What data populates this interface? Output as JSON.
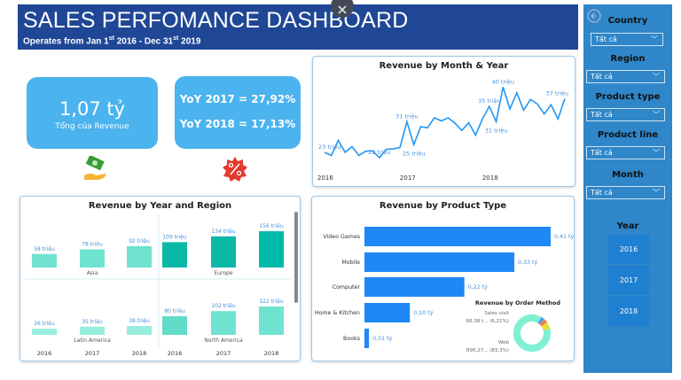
{
  "header": {
    "title": "SALES PERFOMANCE DASHBOARD",
    "subtitle_pre": "Operates from Jan 1",
    "sup1": "st",
    "subtitle_mid": " 2016 - Dec 31",
    "sup2": "st",
    "subtitle_post": " 2019",
    "close_icon": "close-icon"
  },
  "kpi": {
    "total_value": "1,07 tỷ",
    "total_label": "Tổng của Revenue",
    "yoy_2017": "YoY 2017 = 27,92%",
    "yoy_2018": "YoY 2018 = 17,13%",
    "icons": [
      "money-hand-icon",
      "percent-badge-icon"
    ]
  },
  "colors": {
    "header": "#1f4796",
    "kpi": "#4bb3ee",
    "sidebar": "#2f86c8",
    "line": "#2196f3",
    "bar": "#1e88f5"
  },
  "chart_data": [
    {
      "type": "line",
      "title": "Revenue by Month & Year",
      "x_tick_labels": [
        "2016",
        "2017",
        "2018"
      ],
      "values": [
        23,
        22.2,
        26.1,
        23,
        24.5,
        22.2,
        23.3,
        23.4,
        21.6,
        23.8,
        23.9,
        24.3,
        31,
        25,
        29.7,
        29.4,
        32,
        31.2,
        32,
        30.6,
        28.7,
        30.7,
        27.5,
        31.7,
        35,
        31,
        40,
        34.3,
        38.5,
        34,
        36.8,
        35.6,
        33,
        35.4,
        31.7,
        37
      ],
      "data_labels": [
        {
          "index": 0,
          "text": "23 triệu"
        },
        {
          "index": 8,
          "text": "22 triệu"
        },
        {
          "index": 12,
          "text": "31 triệu"
        },
        {
          "index": 13,
          "text": "25 triệu"
        },
        {
          "index": 24,
          "text": "35 triệu"
        },
        {
          "index": 25,
          "text": "31 triệu"
        },
        {
          "index": 26,
          "text": "40 triệu"
        },
        {
          "index": 35,
          "text": "37 triệu"
        }
      ]
    },
    {
      "type": "bar",
      "title": "Revenue by Year and Region",
      "categories": [
        "2016",
        "2017",
        "2018"
      ],
      "panels": [
        {
          "name": "Asia",
          "values": [
            58,
            78,
            92
          ],
          "labels": [
            "58 triệu",
            "78 triệu",
            "92 triệu"
          ]
        },
        {
          "name": "Europe",
          "values": [
            109,
            134,
            156
          ],
          "labels": [
            "109 triệu",
            "134 triệu",
            "156 triệu"
          ]
        },
        {
          "name": "Latin America",
          "values": [
            26,
            35,
            38
          ],
          "labels": [
            "26 triệu",
            "35 triệu",
            "38 triệu"
          ]
        },
        {
          "name": "North America",
          "values": [
            80,
            102,
            122
          ],
          "labels": [
            "80 triệu",
            "102 triệu",
            "122 triệu"
          ]
        }
      ]
    },
    {
      "type": "bar",
      "orientation": "horizontal",
      "title": "Revenue by Product Type",
      "categories": [
        "Video Games",
        "Mobile",
        "Computer",
        "Home & Kitchen",
        "Books"
      ],
      "values": [
        0.41,
        0.33,
        0.22,
        0.1,
        0.01
      ],
      "labels": [
        "0,41 tỷ",
        "0,33 tỷ",
        "0,22 tỷ",
        "0,10 tỷ",
        "0,01 tỷ"
      ]
    },
    {
      "type": "pie",
      "title": "Revenue by Order Method",
      "slices": [
        {
          "name": "Web",
          "label": "890,27... (83,3%)",
          "value": 83.3,
          "color": "#7ff0d4"
        },
        {
          "name": "Sales visit",
          "label": "66,38 t... (6,21%)",
          "value": 6.21,
          "color": "#e8e040"
        },
        {
          "value": 4,
          "color": "#f08050"
        },
        {
          "value": 3,
          "color": "#4aa0f0"
        },
        {
          "value": 3.49,
          "color": "#7ff0d4"
        }
      ]
    }
  ],
  "filters": {
    "back_icon": "back-arrow-icon",
    "items": [
      {
        "label": "Country",
        "value": "Tất cả"
      },
      {
        "label": "Region",
        "value": "Tất cả"
      },
      {
        "label": "Product type",
        "value": "Tất cả"
      },
      {
        "label": "Product line",
        "value": "Tất cả"
      },
      {
        "label": "Month",
        "value": "Tất cả"
      }
    ],
    "year_label": "Year",
    "years": [
      "2016",
      "2017",
      "2018"
    ]
  }
}
